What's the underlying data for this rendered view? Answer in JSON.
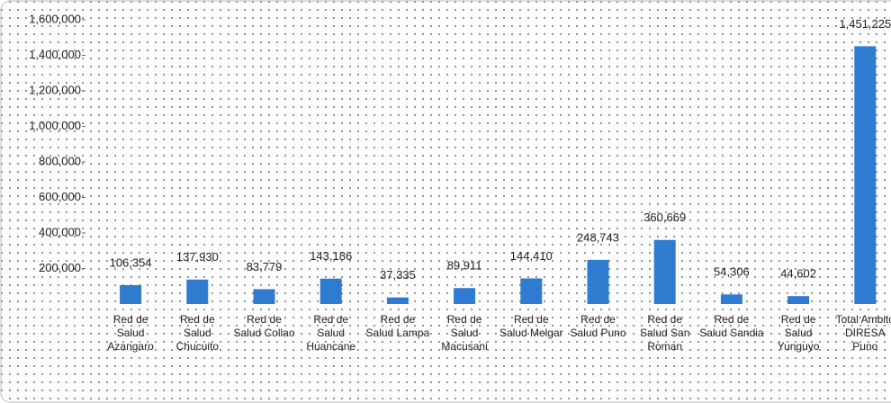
{
  "chart_data": {
    "type": "bar",
    "categories": [
      "Red de Salud Azangaro",
      "Red de Salud Chucuito",
      "Red de Salud Collao",
      "Red de Salud Huancane",
      "Red de Salud Lampa",
      "Red de Salud Macusani",
      "Red de Salud Melgar",
      "Red de Salud Puno",
      "Red de Salud San Roman",
      "Red de Salud Sandia",
      "Red de Salud Yunguyo",
      "Total Ambito DIRESA Puno"
    ],
    "values": [
      106354,
      137930,
      83779,
      143186,
      37335,
      89911,
      144410,
      248743,
      360669,
      54306,
      44602,
      1451225
    ],
    "value_labels": [
      "106,354",
      "137,930",
      "83,779",
      "143,186",
      "37,335",
      "89,911",
      "144,410",
      "248,743",
      "360,669",
      "54,306",
      "44,602",
      "1,451,225"
    ],
    "color": "#2f7bd0",
    "ylim": [
      0,
      1600000
    ],
    "yticks": [
      {
        "value": 200000,
        "label": "200,000"
      },
      {
        "value": 400000,
        "label": "400,000"
      },
      {
        "value": 600000,
        "label": "600,000"
      },
      {
        "value": 800000,
        "label": "800,000"
      },
      {
        "value": 1000000,
        "label": "1,000,000"
      },
      {
        "value": 1200000,
        "label": "1,200,000"
      },
      {
        "value": 1400000,
        "label": "1,400,000"
      },
      {
        "value": 1600000,
        "label": "1,600,000"
      }
    ],
    "grid": false
  }
}
